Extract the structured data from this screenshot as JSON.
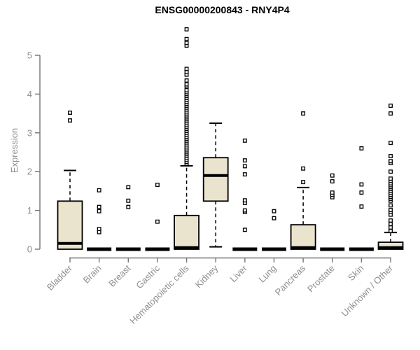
{
  "title": "ENSG00000200843 - RNY4P4",
  "colors": {
    "box_fill": "#EAE4CE",
    "box_border": "#000000",
    "median": "#000000",
    "whisker": "#000000",
    "outlier_stroke": "#000000",
    "axis_line": "#757575",
    "axis_text": "#8e8e8e",
    "title_text": "#000000"
  },
  "chart_data": {
    "type": "boxplot",
    "title": "ENSG00000200843 - RNY4P4",
    "xlabel": "",
    "ylabel": "Expression",
    "ylim": [
      0,
      5.75
    ],
    "yticks": [
      0,
      1,
      2,
      3,
      4,
      5
    ],
    "grid": false,
    "legend": "none",
    "categories": [
      "Bladder",
      "Brain",
      "Breast",
      "Gastric",
      "Hematopoietic cells",
      "Kidney",
      "Liver",
      "Lung",
      "Pancreas",
      "Prostate",
      "Skin",
      "Unknown / Other"
    ],
    "series": [
      {
        "label": "Bladder",
        "q1": 0,
        "median": 0.15,
        "q3": 1.24,
        "whisker_low": 0,
        "whisker_high": 2.03,
        "outliers": [
          3.32,
          3.52
        ]
      },
      {
        "label": "Brain",
        "q1": 0,
        "median": 0,
        "q3": 0,
        "whisker_low": 0,
        "whisker_high": 0,
        "outliers": [
          0.44,
          0.52,
          0.98,
          1.09,
          1.52
        ]
      },
      {
        "label": "Breast",
        "q1": 0,
        "median": 0,
        "q3": 0,
        "whisker_low": 0,
        "whisker_high": 0,
        "outliers": [
          1.09,
          1.25,
          1.6
        ]
      },
      {
        "label": "Gastric",
        "q1": 0,
        "median": 0,
        "q3": 0,
        "whisker_low": 0,
        "whisker_high": 0,
        "outliers": [
          0.71,
          1.66
        ]
      },
      {
        "label": "Hematopoietic cells",
        "q1": 0,
        "median": 0.04,
        "q3": 0.87,
        "whisker_low": 0,
        "whisker_high": 2.15,
        "outliers": [
          2.2,
          2.25,
          2.3,
          2.35,
          2.4,
          2.45,
          2.5,
          2.55,
          2.6,
          2.65,
          2.7,
          2.75,
          2.8,
          2.85,
          2.9,
          2.95,
          3.0,
          3.05,
          3.1,
          3.15,
          3.2,
          3.25,
          3.3,
          3.35,
          3.4,
          3.45,
          3.5,
          3.55,
          3.6,
          3.65,
          3.7,
          3.75,
          3.8,
          3.85,
          3.9,
          3.95,
          4.0,
          4.05,
          4.1,
          4.2,
          4.25,
          4.35,
          4.5,
          4.57,
          4.65,
          5.25,
          5.32,
          5.42,
          5.67
        ]
      },
      {
        "label": "Kidney",
        "q1": 1.24,
        "median": 1.9,
        "q3": 2.36,
        "whisker_low": 0.06,
        "whisker_high": 3.25,
        "outliers": []
      },
      {
        "label": "Liver",
        "q1": 0,
        "median": 0,
        "q3": 0,
        "whisker_low": 0,
        "whisker_high": 0,
        "outliers": [
          0.5,
          0.96,
          1.0,
          1.19,
          1.26,
          1.93,
          2.14,
          2.29,
          2.8
        ]
      },
      {
        "label": "Lung",
        "q1": 0,
        "median": 0,
        "q3": 0,
        "whisker_low": 0,
        "whisker_high": 0,
        "outliers": [
          0.8,
          0.98
        ]
      },
      {
        "label": "Pancreas",
        "q1": 0,
        "median": 0.04,
        "q3": 0.63,
        "whisker_low": 0,
        "whisker_high": 1.59,
        "outliers": [
          1.73,
          2.08,
          3.5
        ]
      },
      {
        "label": "Prostate",
        "q1": 0,
        "median": 0,
        "q3": 0,
        "whisker_low": 0,
        "whisker_high": 0,
        "outliers": [
          1.34,
          1.4,
          1.46,
          1.75,
          1.9
        ]
      },
      {
        "label": "Skin",
        "q1": 0,
        "median": 0,
        "q3": 0,
        "whisker_low": 0,
        "whisker_high": 0,
        "outliers": [
          1.1,
          1.46,
          1.67,
          2.6
        ]
      },
      {
        "label": "Unknown / Other",
        "q1": 0,
        "median": 0.04,
        "q3": 0.18,
        "whisker_low": 0,
        "whisker_high": 0.43,
        "outliers": [
          0.47,
          0.56,
          0.65,
          0.74,
          0.89,
          0.96,
          1.01,
          1.13,
          1.25,
          1.3,
          1.35,
          1.4,
          1.45,
          1.5,
          1.55,
          1.6,
          1.65,
          1.7,
          1.76,
          1.82,
          2.0,
          2.22,
          2.27,
          2.4,
          2.74,
          3.5,
          3.7
        ]
      }
    ]
  }
}
